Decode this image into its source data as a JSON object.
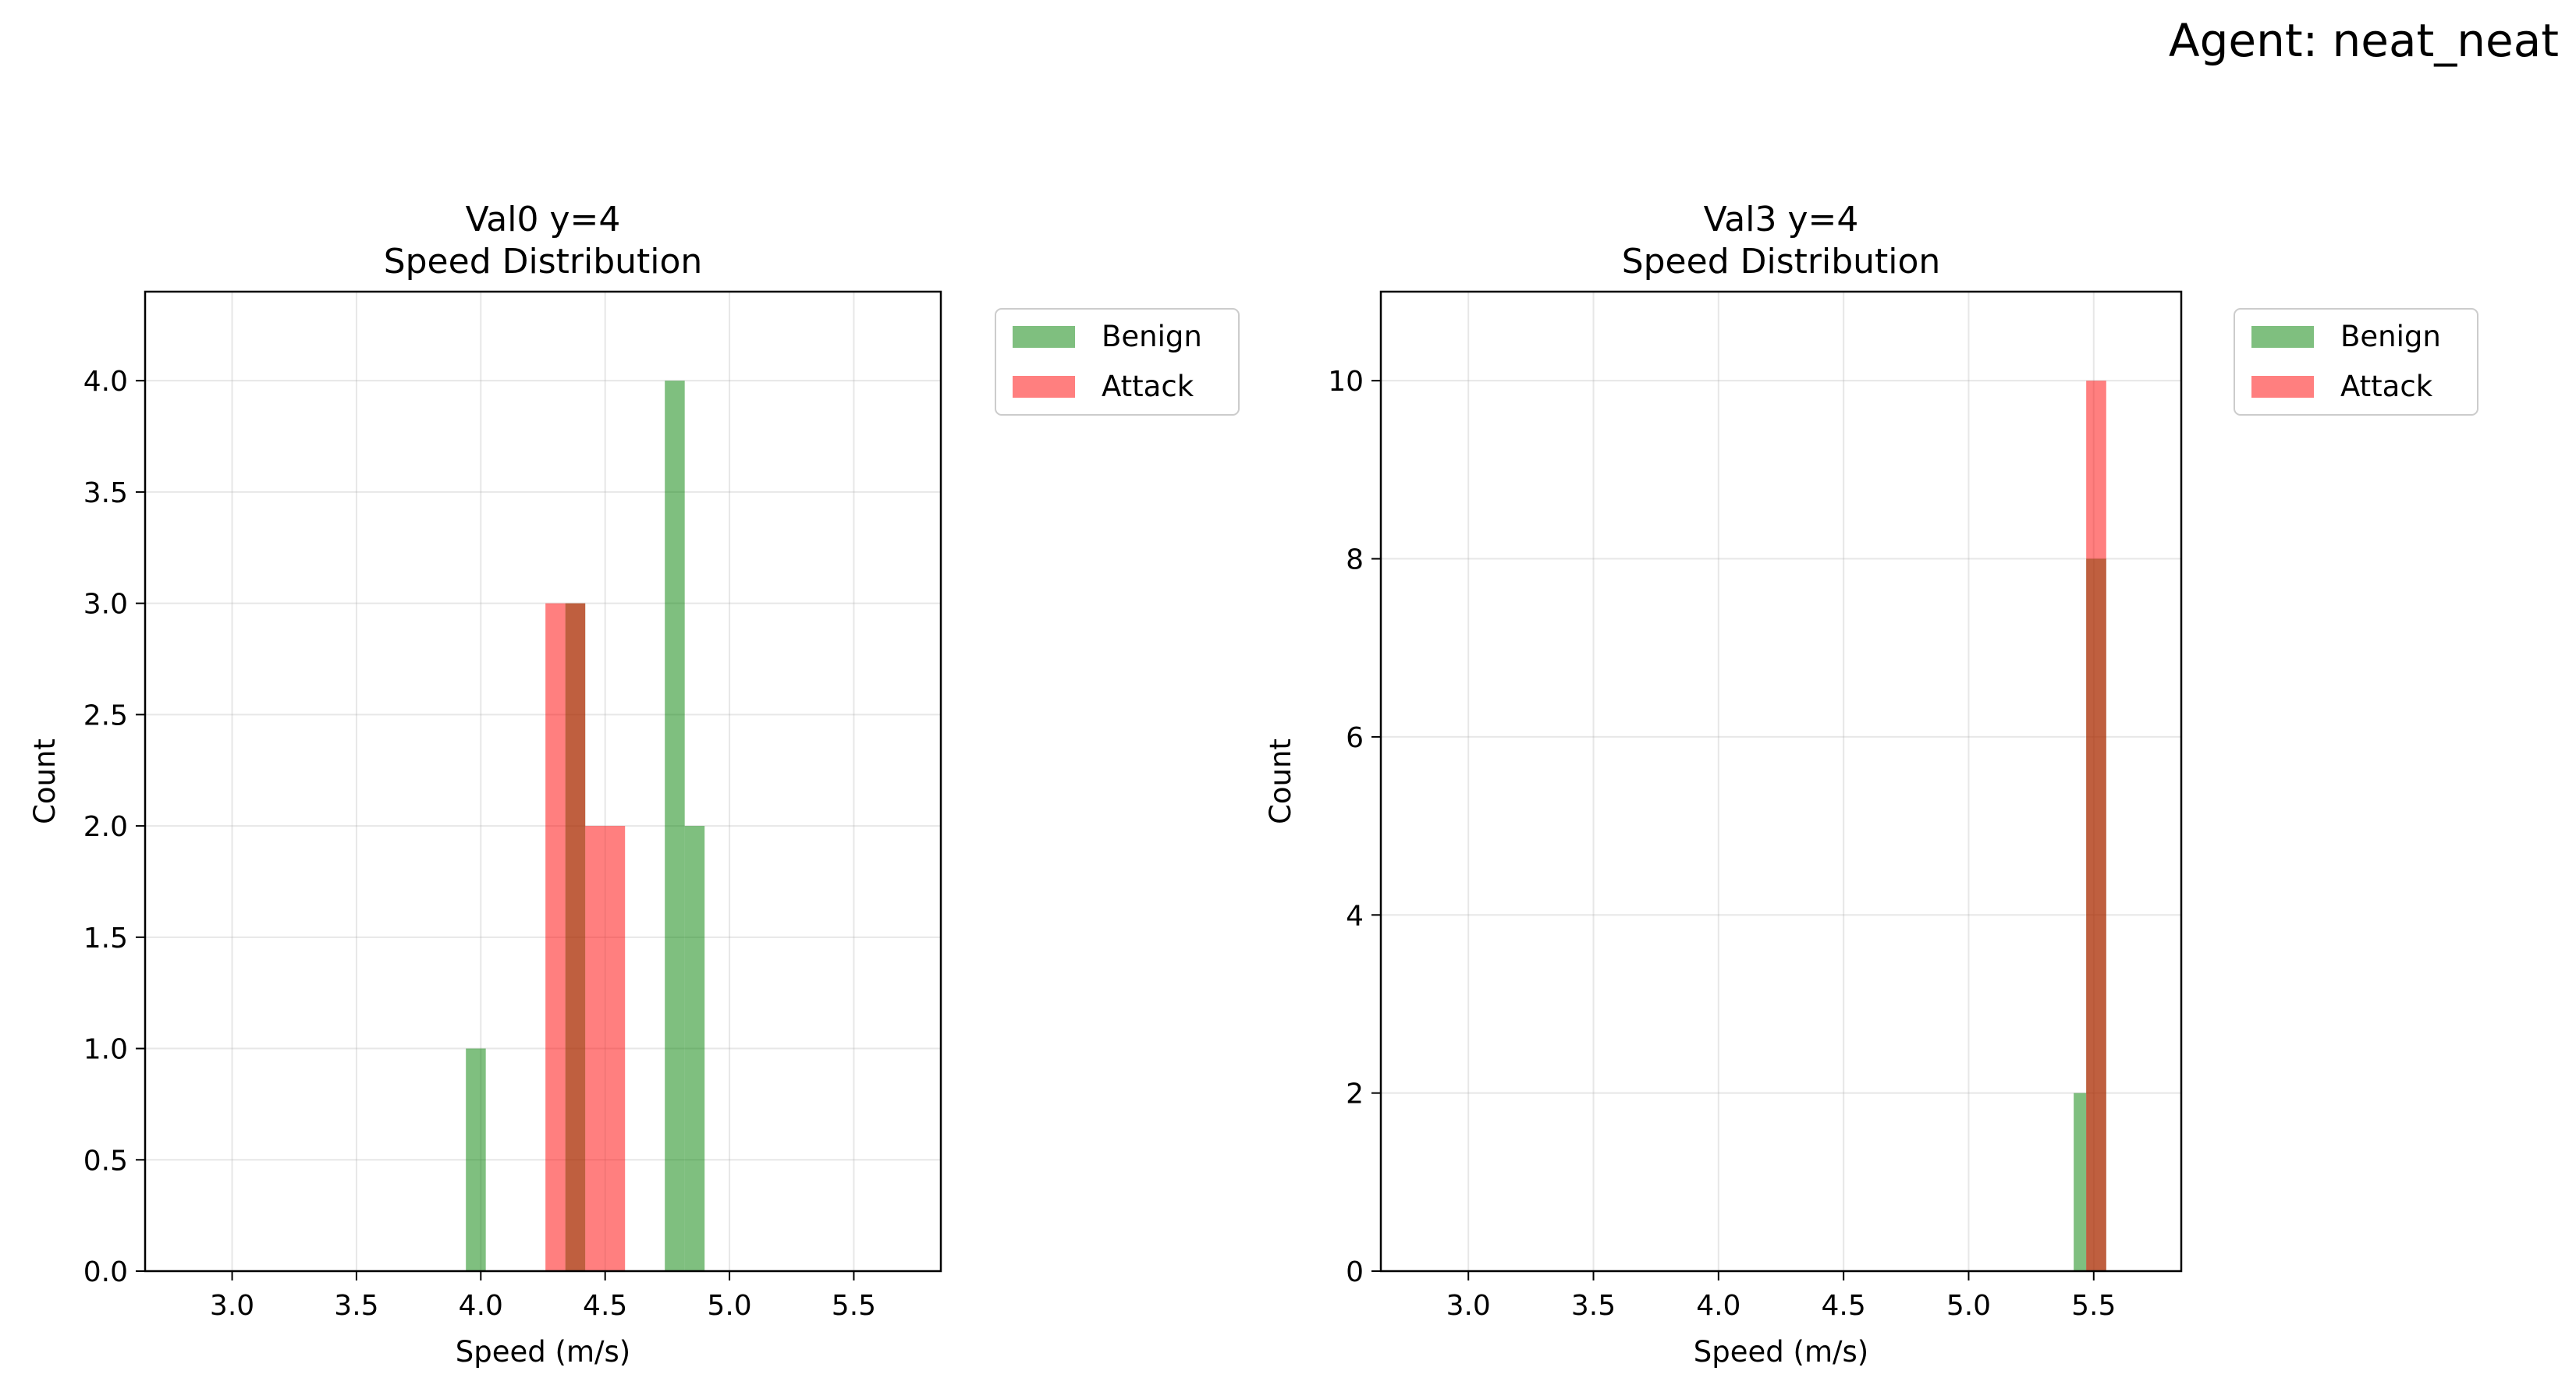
{
  "figure": {
    "suptitle": "Agent: neat_neat"
  },
  "colors": {
    "benign": "#008000",
    "attack": "#ff0000",
    "grid": "#b0b0b0",
    "axes": "#000000"
  },
  "chart_data": [
    {
      "type": "bar",
      "title_line1": "Val0 y=4",
      "title_line2": "Speed Distribution",
      "xlabel": "Speed (m/s)",
      "ylabel": "Count",
      "xlim": [
        2.65,
        5.85
      ],
      "ylim": [
        0,
        4.4
      ],
      "xticks": [
        3.0,
        3.5,
        4.0,
        4.5,
        5.0,
        5.5
      ],
      "xtick_labels": [
        "3.0",
        "3.5",
        "4.0",
        "4.5",
        "5.0",
        "5.5"
      ],
      "yticks": [
        0.0,
        0.5,
        1.0,
        1.5,
        2.0,
        2.5,
        3.0,
        3.5,
        4.0
      ],
      "ytick_labels": [
        "0.0",
        "0.5",
        "1.0",
        "1.5",
        "2.0",
        "2.5",
        "3.0",
        "3.5",
        "4.0"
      ],
      "grid": true,
      "legend_position": "outside-top-right",
      "series": [
        {
          "name": "Benign",
          "bins": [
            {
              "x0": 3.94,
              "x1": 4.02,
              "count": 1
            },
            {
              "x0": 4.34,
              "x1": 4.42,
              "count": 3
            },
            {
              "x0": 4.74,
              "x1": 4.82,
              "count": 4
            },
            {
              "x0": 4.82,
              "x1": 4.9,
              "count": 2
            }
          ]
        },
        {
          "name": "Attack",
          "bins": [
            {
              "x0": 4.26,
              "x1": 4.34,
              "count": 3
            },
            {
              "x0": 4.34,
              "x1": 4.42,
              "count": 3
            },
            {
              "x0": 4.42,
              "x1": 4.5,
              "count": 2
            },
            {
              "x0": 4.5,
              "x1": 4.58,
              "count": 2
            }
          ]
        }
      ]
    },
    {
      "type": "bar",
      "title_line1": "Val3 y=4",
      "title_line2": "Speed Distribution",
      "xlabel": "Speed (m/s)",
      "ylabel": "Count",
      "xlim": [
        2.65,
        5.85
      ],
      "ylim": [
        0,
        11
      ],
      "xticks": [
        3.0,
        3.5,
        4.0,
        4.5,
        5.0,
        5.5
      ],
      "xtick_labels": [
        "3.0",
        "3.5",
        "4.0",
        "4.5",
        "5.0",
        "5.5"
      ],
      "yticks": [
        0,
        2,
        4,
        6,
        8,
        10
      ],
      "ytick_labels": [
        "0",
        "2",
        "4",
        "6",
        "8",
        "10"
      ],
      "grid": true,
      "legend_position": "outside-top-right",
      "series": [
        {
          "name": "Benign",
          "bins": [
            {
              "x0": 5.42,
              "x1": 5.47,
              "count": 2
            },
            {
              "x0": 5.47,
              "x1": 5.55,
              "count": 8
            }
          ]
        },
        {
          "name": "Attack",
          "bins": [
            {
              "x0": 5.47,
              "x1": 5.55,
              "count": 10
            }
          ]
        }
      ]
    }
  ]
}
